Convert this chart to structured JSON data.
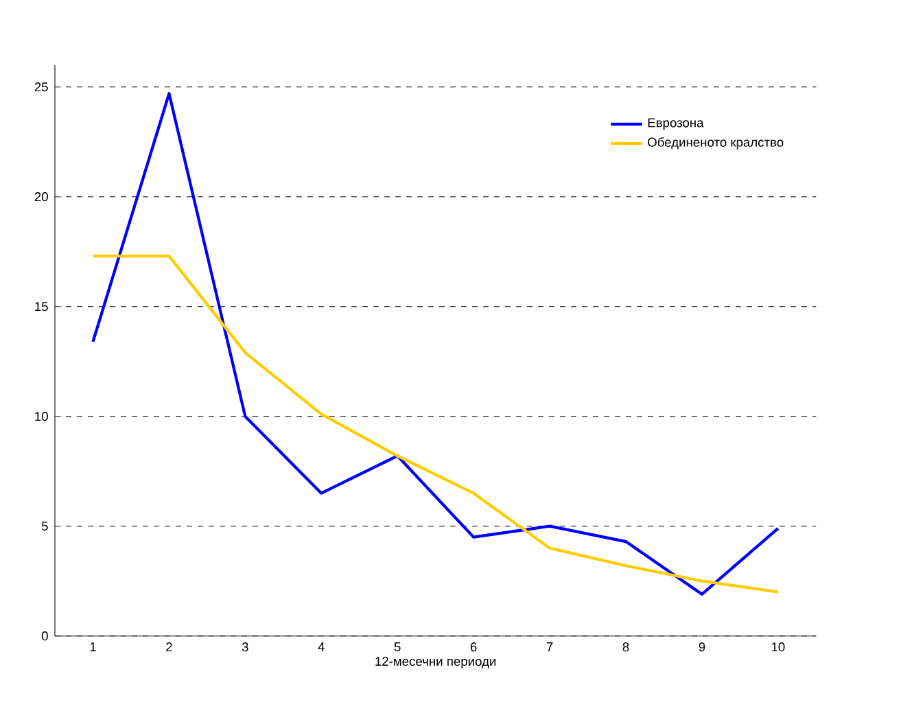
{
  "chart_data": {
    "type": "line",
    "xlabel": "12-месечни периоди",
    "categories": [
      "1",
      "2",
      "3",
      "4",
      "5",
      "6",
      "7",
      "8",
      "9",
      "10"
    ],
    "series": [
      {
        "name": "Еврозона",
        "color": "#0000ff",
        "values": [
          13.4,
          24.7,
          10.0,
          6.5,
          8.2,
          4.5,
          5.0,
          4.3,
          1.9,
          4.9
        ]
      },
      {
        "name": "Обединеното кралство",
        "color": "#ffcc00",
        "values": [
          17.3,
          17.3,
          12.9,
          10.1,
          8.2,
          6.5,
          4.0,
          3.2,
          2.5,
          2.0
        ]
      }
    ],
    "ylim": [
      0,
      26
    ],
    "yticks": [
      0,
      5,
      10,
      15,
      20,
      25
    ],
    "grid": "y",
    "legend": "top right",
    "marker": "none",
    "line_style": "solid"
  }
}
